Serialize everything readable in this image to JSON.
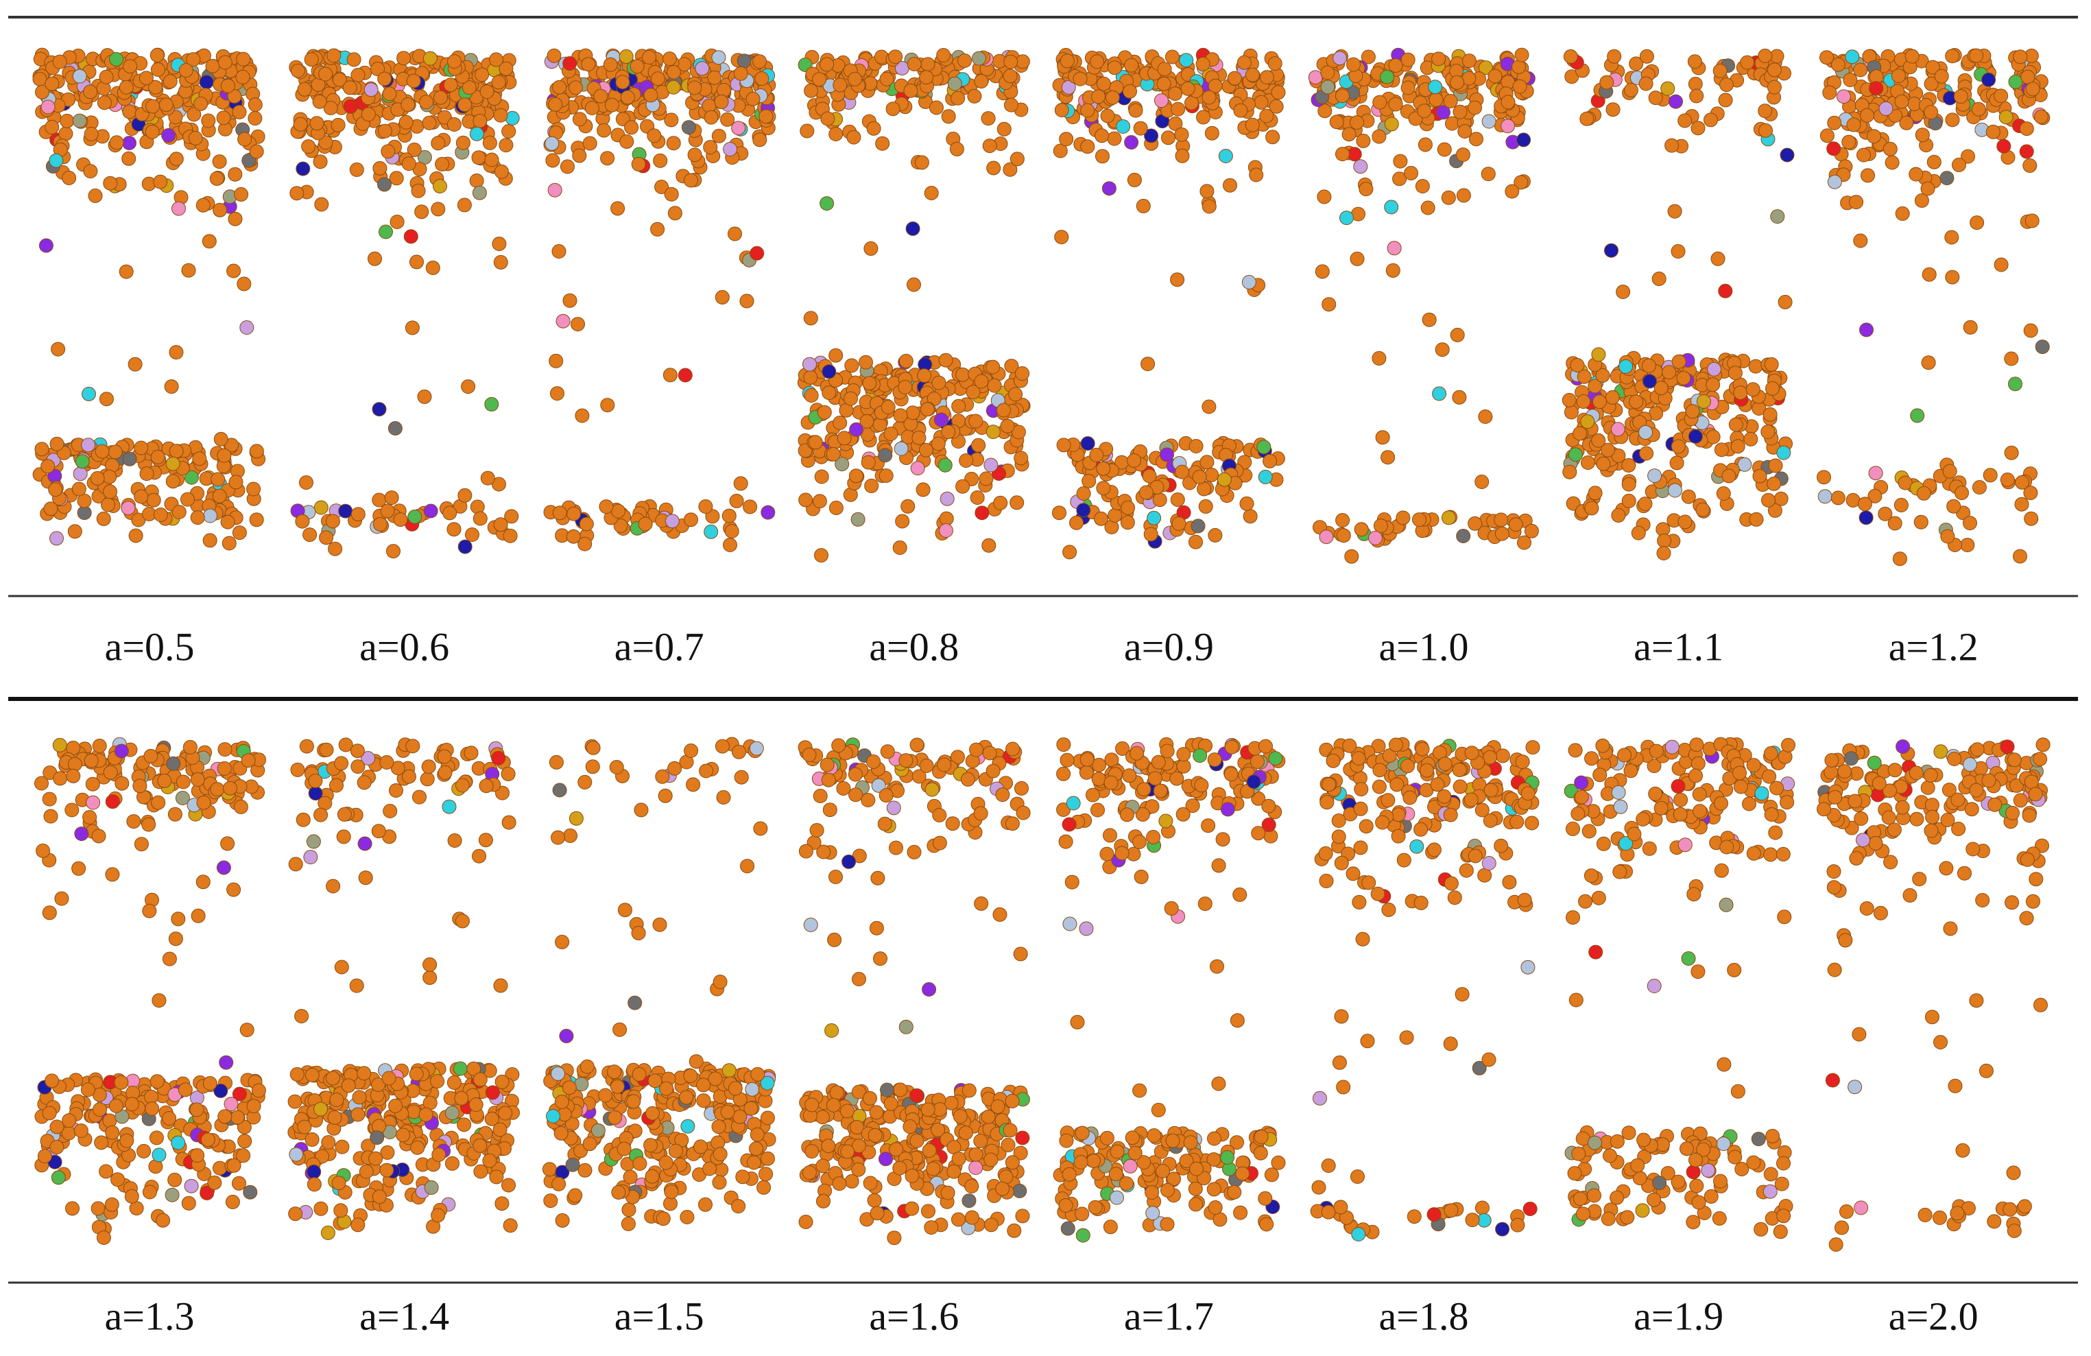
{
  "rows": [
    {
      "labels": [
        "a=0.5",
        "a=0.6",
        "a=0.7",
        "a=0.8",
        "a=0.9",
        "a=1.0",
        "a=1.1",
        "a=1.2"
      ]
    },
    {
      "labels": [
        "a=1.3",
        "a=1.4",
        "a=1.5",
        "a=1.6",
        "a=1.7",
        "a=1.8",
        "a=1.9",
        "a=2.0"
      ]
    }
  ]
}
